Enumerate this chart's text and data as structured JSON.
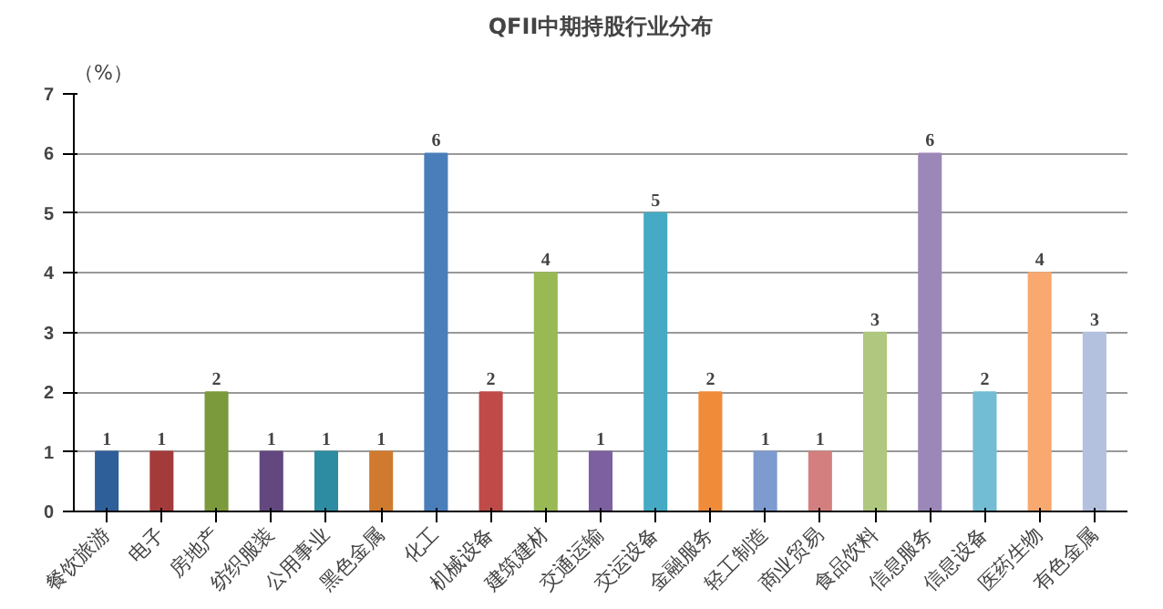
{
  "chart_data": {
    "type": "bar",
    "title": "QFII中期持股行业分布",
    "ylabel": "（%）",
    "categories": [
      "餐饮旅游",
      "电子",
      "房地产",
      "纺织服装",
      "公用事业",
      "黑色金属",
      "化工",
      "机械设备",
      "建筑建材",
      "交通运输",
      "交运设备",
      "金融服务",
      "轻工制造",
      "商业贸易",
      "食品饮料",
      "信息服务",
      "信息设备",
      "医药生物",
      "有色金属"
    ],
    "values": [
      1,
      1,
      2,
      1,
      1,
      1,
      6,
      2,
      4,
      1,
      5,
      2,
      1,
      1,
      3,
      6,
      2,
      4,
      3
    ],
    "colors": [
      "#2f5f98",
      "#a33b3a",
      "#7a9a3c",
      "#62487f",
      "#2d8ba2",
      "#d07a2f",
      "#4a7ebb",
      "#be4b48",
      "#98b954",
      "#7d60a0",
      "#46aac5",
      "#f08b3a",
      "#7e9bd0",
      "#d47f7f",
      "#afc77f",
      "#9c88b8",
      "#72bcd4",
      "#f9a86f",
      "#b3c1de"
    ],
    "ylim": [
      0,
      7
    ],
    "yticks": [
      0,
      1,
      2,
      3,
      4,
      5,
      6,
      7
    ],
    "grid": "y",
    "data_labels": true
  }
}
